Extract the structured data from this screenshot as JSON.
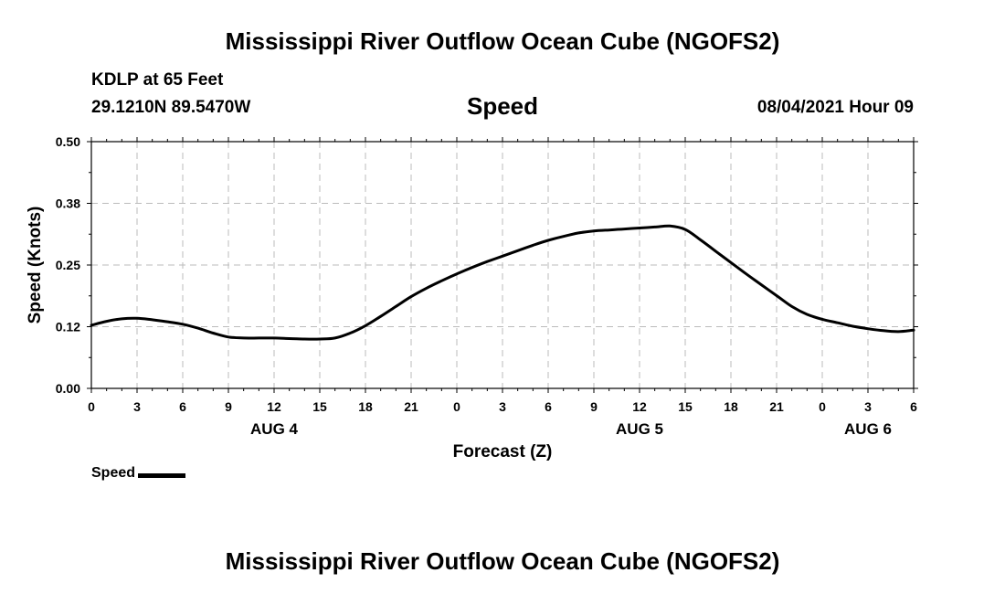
{
  "header": {
    "title": "Mississippi River Outflow Ocean Cube (NGOFS2)",
    "station": "KDLP at 65 Feet",
    "coords": "29.1210N  89.5470W",
    "variable": "Speed",
    "datetime": "08/04/2021 Hour 09"
  },
  "footer": {
    "title": "Mississippi River Outflow Ocean Cube (NGOFS2)"
  },
  "legend": {
    "label": "Speed"
  },
  "chart_data": {
    "type": "line",
    "title": "Speed",
    "xlabel": "Forecast (Z)",
    "ylabel": "Speed (Knots)",
    "ylim": [
      0,
      0.5
    ],
    "xlim": [
      0,
      54
    ],
    "yticks": [
      "0.00",
      "0.12",
      "0.25",
      "0.38",
      "0.50"
    ],
    "xticks": [
      "0",
      "3",
      "6",
      "9",
      "12",
      "15",
      "18",
      "21",
      "0",
      "3",
      "6",
      "9",
      "12",
      "15",
      "18",
      "21",
      "0",
      "3",
      "6"
    ],
    "day_labels": [
      {
        "label": "AUG 4",
        "at": 12
      },
      {
        "label": "AUG 5",
        "at": 36
      },
      {
        "label": "AUG 6",
        "at": 51
      }
    ],
    "grid": true,
    "series": [
      {
        "name": "Speed",
        "color": "#000000",
        "x": [
          0,
          1,
          2,
          3,
          4,
          5,
          6,
          7,
          8,
          9,
          10,
          11,
          12,
          13,
          14,
          15,
          16,
          17,
          18,
          19,
          20,
          21,
          22,
          23,
          24,
          25,
          26,
          27,
          28,
          29,
          30,
          31,
          32,
          33,
          34,
          35,
          36,
          37,
          38,
          39,
          40,
          41,
          42,
          43,
          44,
          45,
          46,
          47,
          48,
          49,
          50,
          51,
          52,
          53,
          54
        ],
        "y": [
          0.128,
          0.136,
          0.141,
          0.142,
          0.139,
          0.135,
          0.13,
          0.122,
          0.112,
          0.104,
          0.102,
          0.102,
          0.102,
          0.101,
          0.1,
          0.1,
          0.102,
          0.112,
          0.127,
          0.146,
          0.166,
          0.186,
          0.203,
          0.218,
          0.232,
          0.245,
          0.257,
          0.268,
          0.279,
          0.29,
          0.3,
          0.308,
          0.315,
          0.319,
          0.321,
          0.323,
          0.325,
          0.327,
          0.329,
          0.322,
          0.301,
          0.278,
          0.255,
          0.232,
          0.21,
          0.188,
          0.166,
          0.15,
          0.14,
          0.133,
          0.126,
          0.121,
          0.117,
          0.115,
          0.118
        ]
      }
    ]
  }
}
